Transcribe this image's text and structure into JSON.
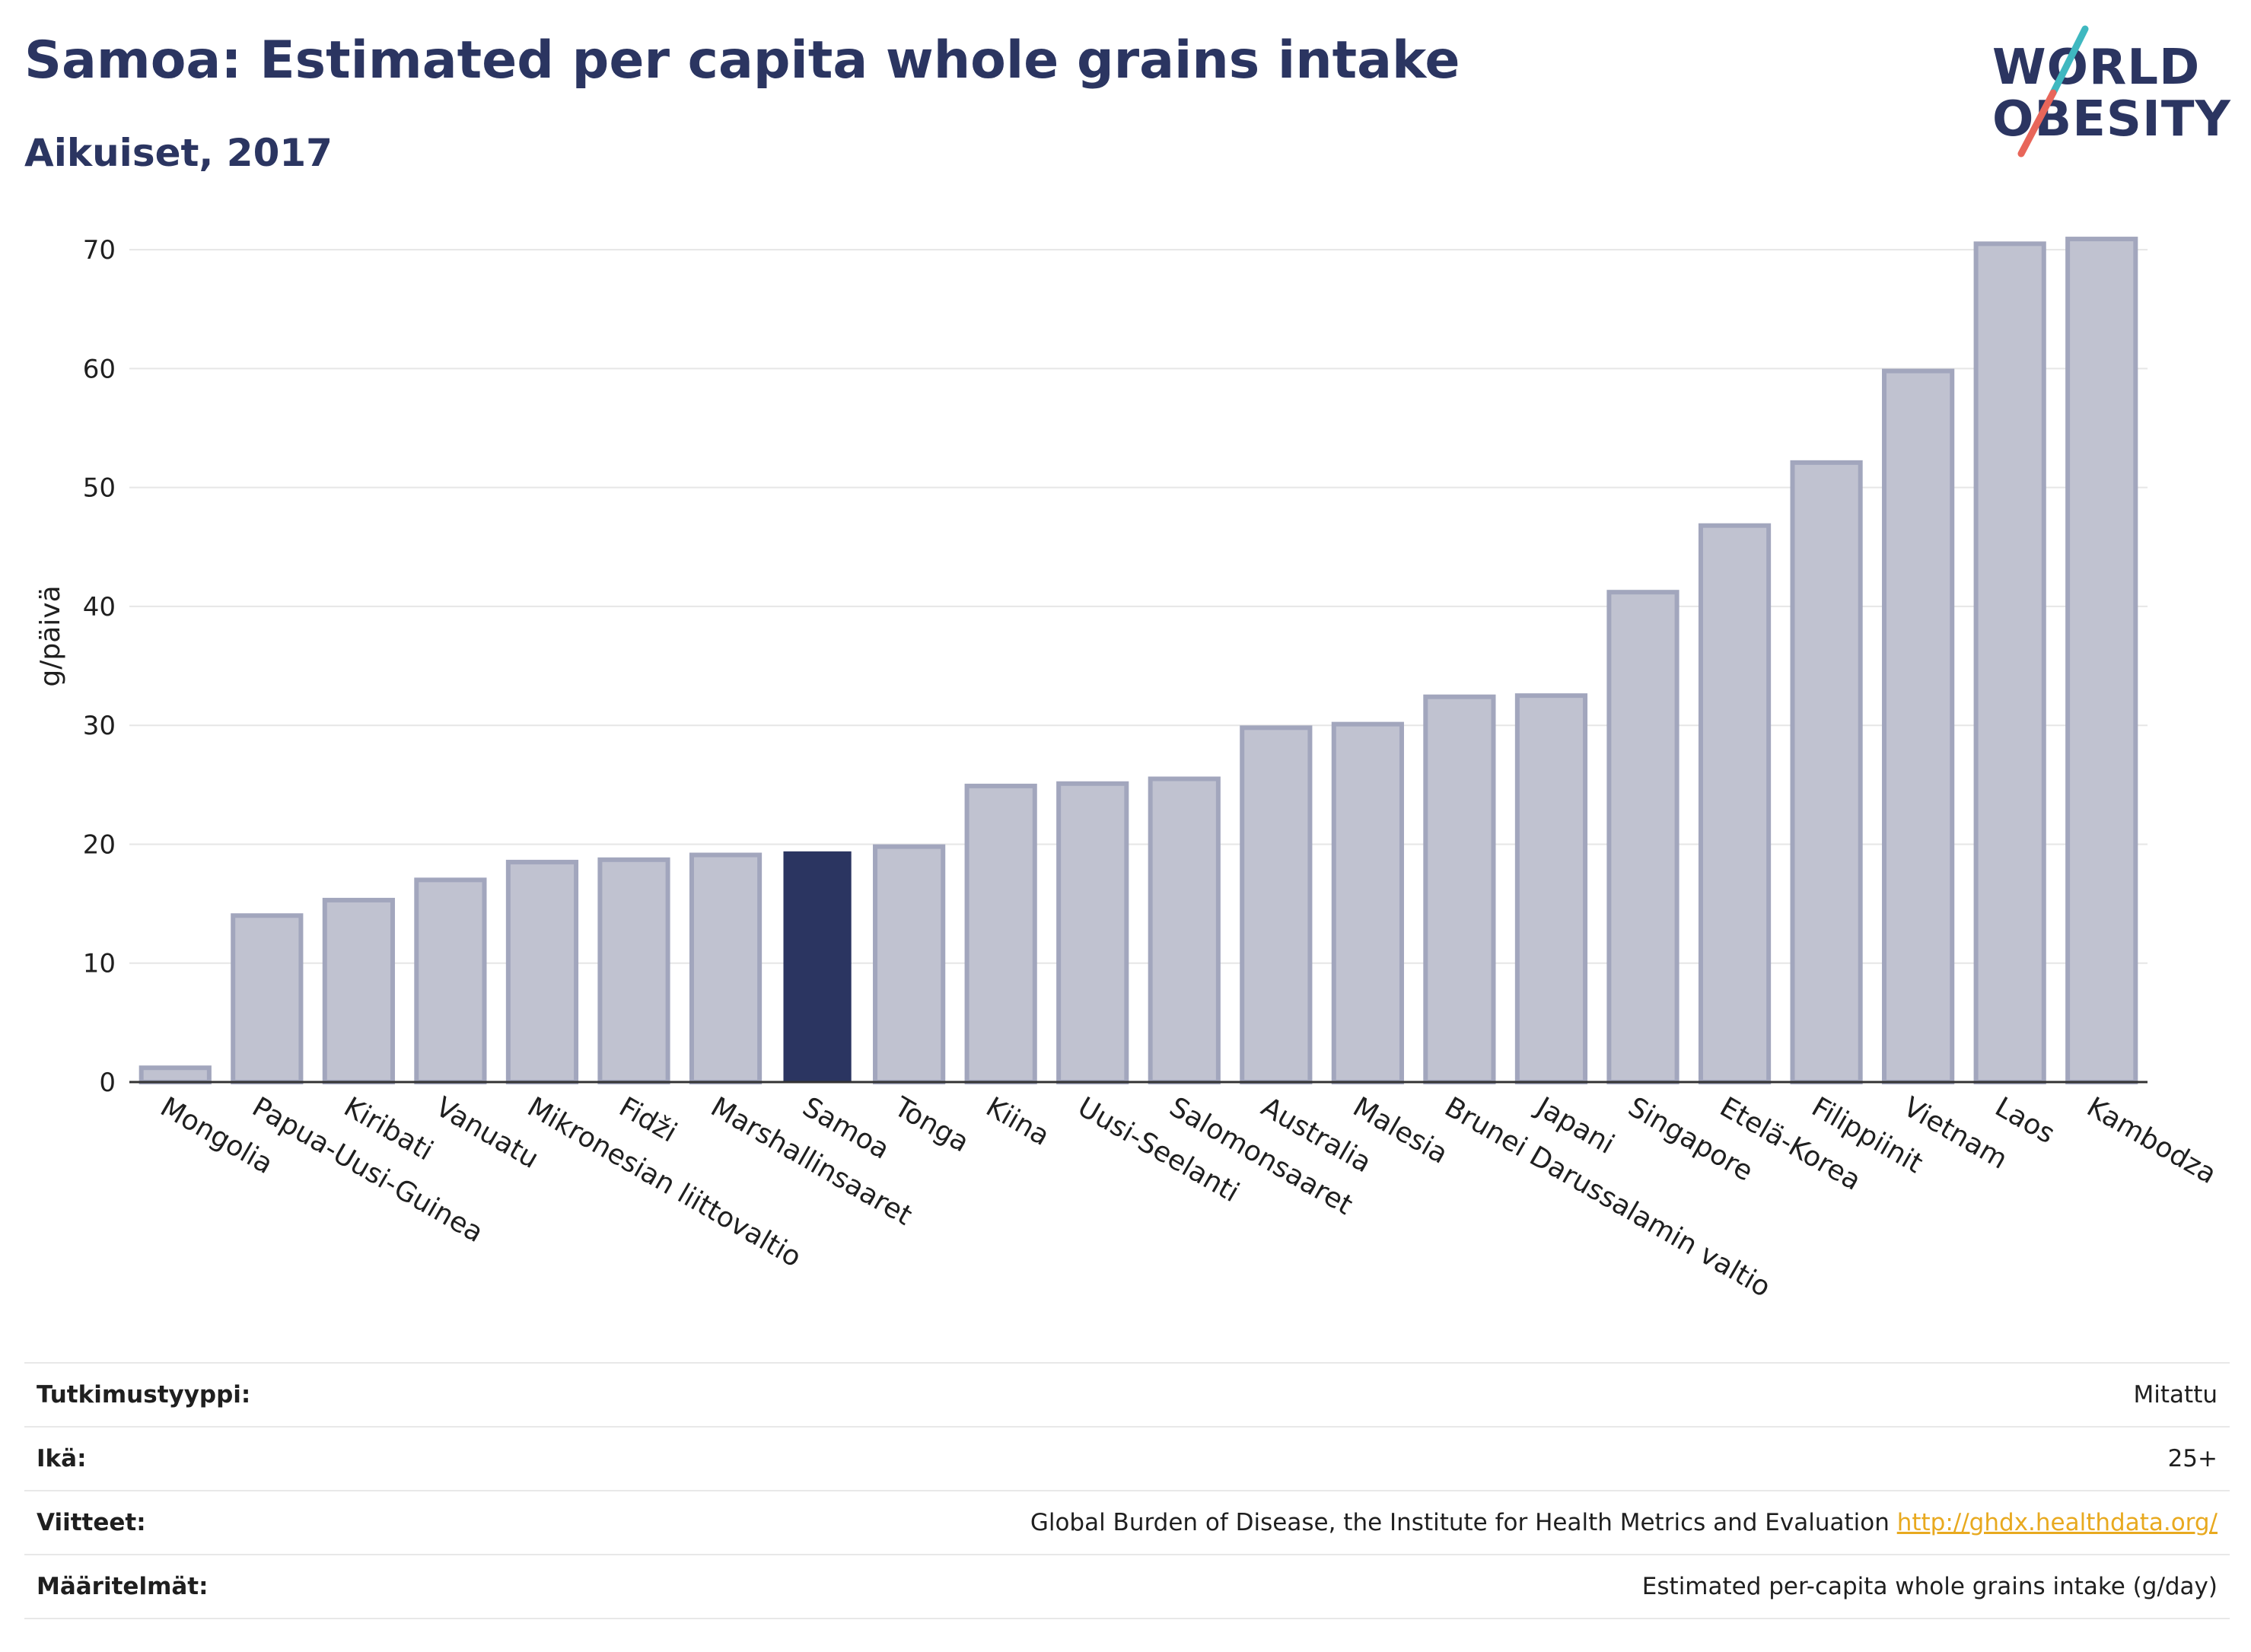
{
  "header": {
    "title": "Samoa: Estimated per capita whole grains intake",
    "subtitle": "Aikuiset, 2017"
  },
  "logo": {
    "line1": "WORLD",
    "line2": "OBESITY"
  },
  "colors": {
    "bar_fill": "#c0c2d0",
    "bar_stroke": "#a2a6bd",
    "highlight": "#2b3561",
    "grid": "#e6e6e6",
    "axis": "#333333",
    "text": "#1f1f1f"
  },
  "chart_data": {
    "type": "bar",
    "title": "Samoa: Estimated per capita whole grains intake",
    "subtitle": "Aikuiset, 2017",
    "ylabel": "g/päivä",
    "xlabel": "",
    "ylim": [
      0,
      75
    ],
    "yticks": [
      0,
      10,
      20,
      30,
      40,
      50,
      60,
      70
    ],
    "grid": true,
    "highlight": "Samoa",
    "categories": [
      "Mongolia",
      "Papua-Uusi-Guinea",
      "Kiribati",
      "Vanuatu",
      "Mikronesian liittovaltio",
      "Fidži",
      "Marshallinsaaret",
      "Samoa",
      "Tonga",
      "Kiina",
      "Uusi-Seelanti",
      "Salomonsaaret",
      "Australia",
      "Malesia",
      "Brunei Darussalamin valtio",
      "Japani",
      "Singapore",
      "Etelä-Korea",
      "Filippiinit",
      "Vietnam",
      "Laos",
      "Kambodza"
    ],
    "values": [
      1.2,
      14.0,
      15.3,
      17.0,
      18.5,
      18.7,
      19.1,
      19.4,
      19.8,
      24.9,
      25.1,
      25.5,
      29.8,
      30.1,
      32.4,
      32.5,
      41.2,
      46.8,
      52.1,
      59.8,
      70.5,
      70.9
    ]
  },
  "meta": {
    "rows": [
      {
        "label": "Tutkimustyyppi:",
        "value": "Mitattu",
        "link": ""
      },
      {
        "label": "Ikä:",
        "value": "25+",
        "link": ""
      },
      {
        "label": "Viitteet:",
        "value": "Global Burden of Disease, the Institute for Health Metrics and Evaluation ",
        "link": "http://ghdx.healthdata.org/"
      },
      {
        "label": "Määritelmät:",
        "value": "Estimated per-capita whole grains intake (g/day)",
        "link": ""
      }
    ]
  }
}
